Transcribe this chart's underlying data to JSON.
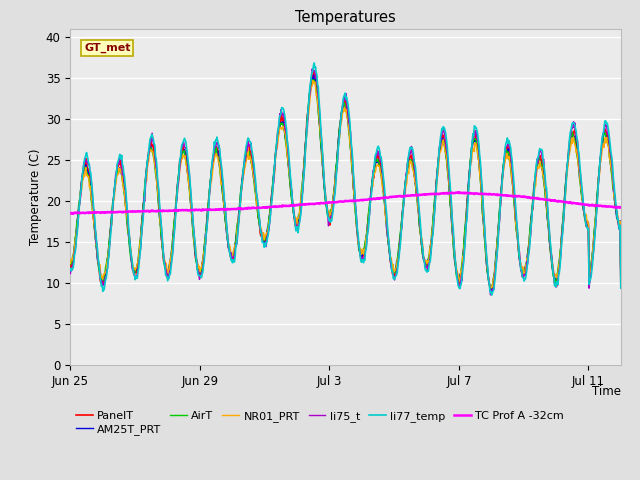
{
  "title": "Temperatures",
  "xlabel": "Time",
  "ylabel": "Temperature (C)",
  "ylim": [
    0,
    41
  ],
  "yticks": [
    0,
    5,
    10,
    15,
    20,
    25,
    30,
    35,
    40
  ],
  "bg_color": "#e0e0e0",
  "plot_bg_color": "#ebebeb",
  "grid_color": "#ffffff",
  "xtick_labels": [
    "Jun 25",
    "Jun 29",
    "Jul 3",
    "Jul 7",
    "Jul 11"
  ],
  "xtick_offsets": [
    0,
    4,
    8,
    12,
    16
  ],
  "xlim": [
    0,
    17
  ],
  "annotation_text": "GT_met",
  "series_names": [
    "PanelT",
    "AM25T_PRT",
    "AirT",
    "NR01_PRT",
    "li75_t",
    "li77_temp",
    "TC Prof A -32cm"
  ],
  "series_colors": [
    "#ff0000",
    "#0000dd",
    "#00cc00",
    "#ffaa00",
    "#aa00cc",
    "#00cccc",
    "#ff00ff"
  ],
  "series_lw": [
    1.2,
    1.0,
    1.0,
    1.0,
    1.0,
    1.2,
    1.8
  ],
  "legend_ncol": 6,
  "day_peaks": [
    27,
    22,
    27,
    27,
    26,
    27,
    26,
    34,
    37,
    27,
    24,
    27,
    29,
    27,
    26,
    25,
    32
  ],
  "day_mins": [
    12,
    10,
    11,
    11,
    11,
    13,
    15,
    17,
    18,
    13,
    11,
    12,
    10,
    9,
    11,
    10,
    17
  ],
  "tc_vals": [
    18.5,
    18.6,
    18.7,
    18.8,
    18.9,
    19.0,
    19.2,
    19.5,
    19.8,
    20.1,
    20.5,
    20.8,
    21.0,
    20.8,
    20.5,
    20.0,
    19.5,
    19.2
  ]
}
